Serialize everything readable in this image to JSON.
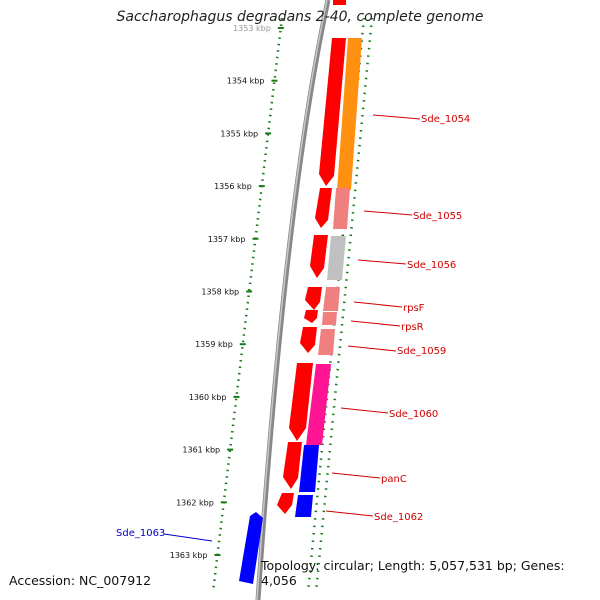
{
  "title": "Saccharophagus degradans 2-40, complete genome",
  "footer": {
    "accession": "Accession: NC_007912",
    "summary": "Topology: circular; Length: 5,057,531 bp; Genes: 4,056"
  },
  "scale": {
    "ticks": [
      "1353 kbp",
      "1354 kbp",
      "1355 kbp",
      "1356 kbp",
      "1357 kbp",
      "1358 kbp",
      "1359 kbp",
      "1360 kbp",
      "1361 kbp",
      "1362 kbp",
      "1363 kbp"
    ]
  },
  "genes": [
    {
      "label": "Sde_1054",
      "color": "#d00000"
    },
    {
      "label": "Sde_1055",
      "color": "#d00000"
    },
    {
      "label": "Sde_1056",
      "color": "#d00000"
    },
    {
      "label": "rpsF",
      "color": "#d00000"
    },
    {
      "label": "rpsR",
      "color": "#d00000"
    },
    {
      "label": "Sde_1059",
      "color": "#d00000"
    },
    {
      "label": "Sde_1060",
      "color": "#d00000"
    },
    {
      "label": "panC",
      "color": "#d00000"
    },
    {
      "label": "Sde_1062",
      "color": "#d00000"
    },
    {
      "label": "Sde_1063",
      "color": "#0000cc"
    }
  ],
  "colors": {
    "forward_strand": "#ff0000",
    "reverse_strand": "#0000ff",
    "scale_dots": "#1a7a1a",
    "backbone": "#808080",
    "cog_orange": "#ff9010",
    "cog_pink": "#f08080",
    "cog_gray": "#c0c0c0",
    "cog_magenta": "#ff1493",
    "cog_blue": "#0000ff"
  }
}
